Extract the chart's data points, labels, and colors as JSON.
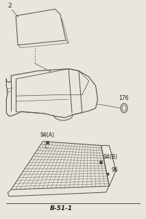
{
  "bg_color": "#eae6de",
  "line_color": "#4a4a4a",
  "text_color": "#1a1a1a",
  "title_bottom": "B-51-1",
  "labels": {
    "part2": "2",
    "part94A": "94(A)",
    "part94B": "94(B)",
    "part96": "96",
    "part176": "176"
  },
  "figsize": [
    2.13,
    3.2
  ],
  "dpi": 100
}
